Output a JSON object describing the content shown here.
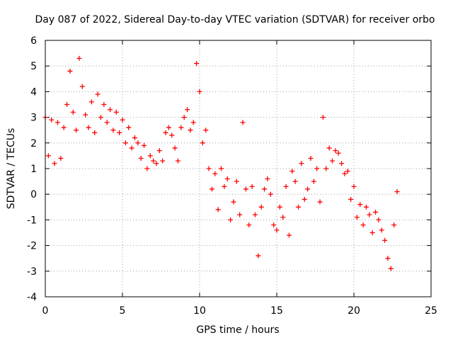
{
  "chart_data": {
    "type": "scatter",
    "title": "Day 087 of 2022, Sidereal Day-to-day VTEC variation (SDTVAR) for receiver orbo",
    "xlabel": "GPS time / hours",
    "ylabel": "SDTVAR / TECUs",
    "xlim": [
      0,
      25
    ],
    "ylim": [
      -4,
      6
    ],
    "xticks": [
      0,
      5,
      10,
      15,
      20,
      25
    ],
    "yticks": [
      -4,
      -3,
      -2,
      -1,
      0,
      1,
      2,
      3,
      4,
      5,
      6
    ],
    "grid": true,
    "marker": "+",
    "color": "#ff0000",
    "series": [
      {
        "name": "SDTVAR",
        "x": [
          0.0,
          0.2,
          0.4,
          0.6,
          0.8,
          1.0,
          1.2,
          1.4,
          1.6,
          1.8,
          2.0,
          2.2,
          2.4,
          2.6,
          2.8,
          3.0,
          3.2,
          3.4,
          3.6,
          3.8,
          4.0,
          4.2,
          4.4,
          4.6,
          4.8,
          5.0,
          5.2,
          5.4,
          5.6,
          5.8,
          6.0,
          6.2,
          6.4,
          6.6,
          6.8,
          7.0,
          7.2,
          7.4,
          7.6,
          7.8,
          8.0,
          8.2,
          8.4,
          8.6,
          8.8,
          9.0,
          9.2,
          9.4,
          9.6,
          9.8,
          10.0,
          10.2,
          10.4,
          10.6,
          10.8,
          11.0,
          11.2,
          11.4,
          11.6,
          11.8,
          12.0,
          12.2,
          12.4,
          12.6,
          12.8,
          13.0,
          13.2,
          13.4,
          13.6,
          13.8,
          14.0,
          14.2,
          14.4,
          14.6,
          14.8,
          15.0,
          15.2,
          15.4,
          15.6,
          15.8,
          16.0,
          16.2,
          16.4,
          16.6,
          16.8,
          17.0,
          17.2,
          17.4,
          17.6,
          17.8,
          18.0,
          18.2,
          18.4,
          18.6,
          18.8,
          19.0,
          19.2,
          19.4,
          19.6,
          19.8,
          20.0,
          20.2,
          20.4,
          20.6,
          20.8,
          21.0,
          21.2,
          21.4,
          21.6,
          21.8,
          22.0,
          22.2,
          22.4,
          22.6,
          22.8
        ],
        "y": [
          3.0,
          1.5,
          2.9,
          1.2,
          2.8,
          1.4,
          2.6,
          3.5,
          4.8,
          3.2,
          2.5,
          5.3,
          4.2,
          3.1,
          2.6,
          3.6,
          2.4,
          3.9,
          3.0,
          3.5,
          2.8,
          3.3,
          2.5,
          3.2,
          2.4,
          2.9,
          2.0,
          2.6,
          1.8,
          2.2,
          2.0,
          1.4,
          1.9,
          1.0,
          1.5,
          1.3,
          1.2,
          1.7,
          1.3,
          2.4,
          2.6,
          2.3,
          1.8,
          1.3,
          2.6,
          3.0,
          3.3,
          2.5,
          2.8,
          5.1,
          4.0,
          2.0,
          2.5,
          1.0,
          0.2,
          0.8,
          -0.6,
          1.0,
          0.3,
          0.6,
          -1.0,
          -0.3,
          0.5,
          -0.8,
          2.8,
          0.2,
          -1.2,
          0.3,
          -0.8,
          -2.4,
          -0.5,
          0.2,
          0.6,
          0.0,
          -1.2,
          -1.4,
          -0.5,
          -0.9,
          0.3,
          -1.6,
          0.9,
          0.5,
          -0.5,
          1.2,
          -0.2,
          0.2,
          1.4,
          0.5,
          1.0,
          -0.3,
          3.0,
          1.0,
          1.8,
          1.3,
          1.7,
          1.6,
          1.2,
          0.8,
          0.9,
          -0.2,
          0.3,
          -0.9,
          -0.4,
          -1.2,
          -0.5,
          -0.8,
          -1.5,
          -0.7,
          -1.0,
          -1.4,
          -1.8,
          -2.5,
          -2.9,
          -1.2,
          0.1
        ]
      }
    ]
  }
}
